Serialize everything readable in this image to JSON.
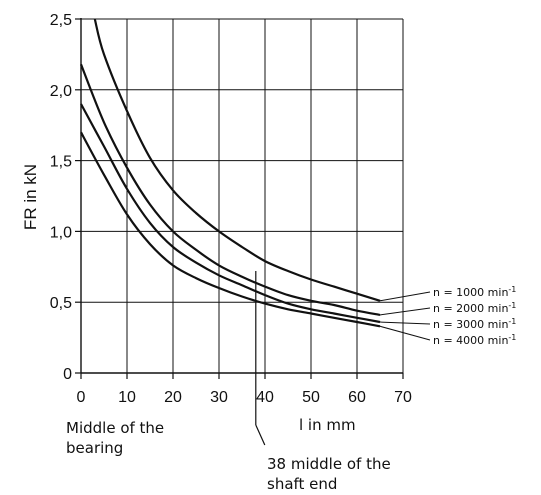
{
  "chart_data": {
    "type": "line",
    "title": "",
    "xlabel": "l in mm",
    "ylabel": "FR in kN",
    "xlim": [
      0,
      70
    ],
    "ylim": [
      0,
      2.5
    ],
    "grid": true,
    "x_ticks": [
      "0",
      "10",
      "20",
      "30",
      "40",
      "50",
      "60",
      "70"
    ],
    "y_ticks": [
      "0",
      "0,5",
      "1,0",
      "1,5",
      "2,0",
      "2,5"
    ],
    "series": [
      {
        "name": "n = 1000 min",
        "exp": "-1",
        "x": [
          3,
          5,
          10,
          15,
          20,
          25,
          30,
          35,
          40,
          45,
          50,
          55,
          60,
          65
        ],
        "y": [
          2.5,
          2.25,
          1.85,
          1.52,
          1.29,
          1.13,
          1.0,
          0.89,
          0.79,
          0.72,
          0.66,
          0.61,
          0.56,
          0.51
        ]
      },
      {
        "name": "n = 2000 min",
        "exp": "-1",
        "x": [
          0,
          5,
          10,
          15,
          20,
          25,
          30,
          35,
          40,
          45,
          50,
          55,
          60,
          65
        ],
        "y": [
          2.18,
          1.77,
          1.45,
          1.19,
          1.0,
          0.87,
          0.76,
          0.68,
          0.61,
          0.55,
          0.51,
          0.48,
          0.44,
          0.41
        ]
      },
      {
        "name": "n = 3000 min",
        "exp": "-1",
        "x": [
          0,
          5,
          10,
          15,
          20,
          25,
          30,
          35,
          40,
          45,
          50,
          55,
          60,
          65
        ],
        "y": [
          1.9,
          1.6,
          1.3,
          1.06,
          0.89,
          0.78,
          0.69,
          0.62,
          0.55,
          0.49,
          0.45,
          0.42,
          0.39,
          0.36
        ]
      },
      {
        "name": "n = 4000 min",
        "exp": "-1",
        "x": [
          0,
          5,
          10,
          15,
          20,
          25,
          30,
          35,
          40,
          45,
          50,
          55,
          60,
          65
        ],
        "y": [
          1.7,
          1.4,
          1.12,
          0.91,
          0.76,
          0.67,
          0.6,
          0.54,
          0.49,
          0.45,
          0.42,
          0.39,
          0.36,
          0.33
        ]
      }
    ],
    "annotations": {
      "left_line1": "Middle of the",
      "left_line2": "bearing",
      "marker_x": 38,
      "marker_line1": "38 middle of the",
      "marker_line2": "shaft end"
    }
  }
}
